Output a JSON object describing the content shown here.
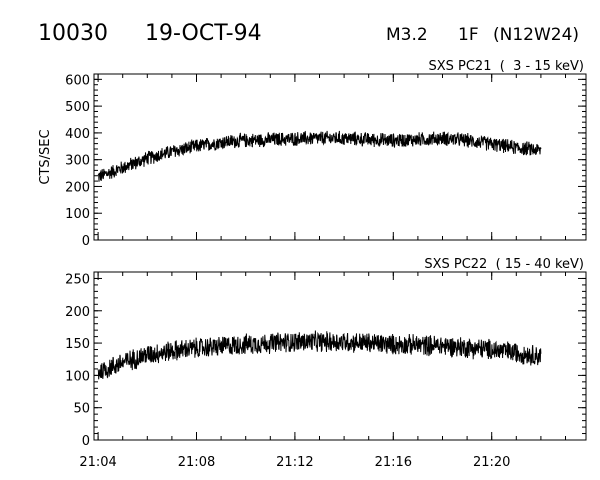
{
  "header": {
    "event_id": "10030",
    "date": "19-OCT-94",
    "flare_class": "M3.2",
    "optical_class": "1F",
    "location": "(N12W24)"
  },
  "chart_data": [
    {
      "type": "line",
      "title": "SXS PC21  (  3 - 15 keV)",
      "ylabel": "CTS/SEC",
      "xlabel": "",
      "ylim": [
        0,
        620
      ],
      "yticks": [
        "0",
        "100",
        "200",
        "300",
        "400",
        "500",
        "600"
      ],
      "xlim": [
        "21:03:50",
        "21:23:50"
      ],
      "xticks": [
        "21:04",
        "21:08",
        "21:12",
        "21:16",
        "21:20"
      ],
      "show_xtick_labels": false,
      "grid": false,
      "noise_amplitude": 30,
      "series": [
        {
          "x": [
            "21:04",
            "21:05",
            "21:06",
            "21:07",
            "21:08",
            "21:09",
            "21:10",
            "21:11",
            "21:12",
            "21:13",
            "21:14",
            "21:15",
            "21:16",
            "21:17",
            "21:18",
            "21:19",
            "21:20",
            "21:21",
            "21:22"
          ],
          "values": [
            235,
            270,
            305,
            330,
            350,
            365,
            372,
            375,
            378,
            380,
            380,
            375,
            372,
            375,
            380,
            372,
            358,
            345,
            335
          ]
        }
      ]
    },
    {
      "type": "line",
      "title": "SXS PC22  ( 15 - 40 keV)",
      "ylabel": "",
      "xlabel": "",
      "ylim": [
        0,
        260
      ],
      "yticks": [
        "0",
        "50",
        "100",
        "150",
        "200",
        "250"
      ],
      "xlim": [
        "21:03:50",
        "21:23:50"
      ],
      "xticks": [
        "21:04",
        "21:08",
        "21:12",
        "21:16",
        "21:20"
      ],
      "show_xtick_labels": true,
      "grid": false,
      "noise_amplitude": 18,
      "series": [
        {
          "x": [
            "21:04",
            "21:05",
            "21:06",
            "21:07",
            "21:08",
            "21:09",
            "21:10",
            "21:11",
            "21:12",
            "21:13",
            "21:14",
            "21:15",
            "21:16",
            "21:17",
            "21:18",
            "21:19",
            "21:20",
            "21:21",
            "21:22"
          ],
          "values": [
            105,
            120,
            132,
            138,
            142,
            145,
            148,
            150,
            152,
            152,
            152,
            150,
            148,
            147,
            146,
            143,
            140,
            135,
            130
          ]
        }
      ]
    }
  ]
}
